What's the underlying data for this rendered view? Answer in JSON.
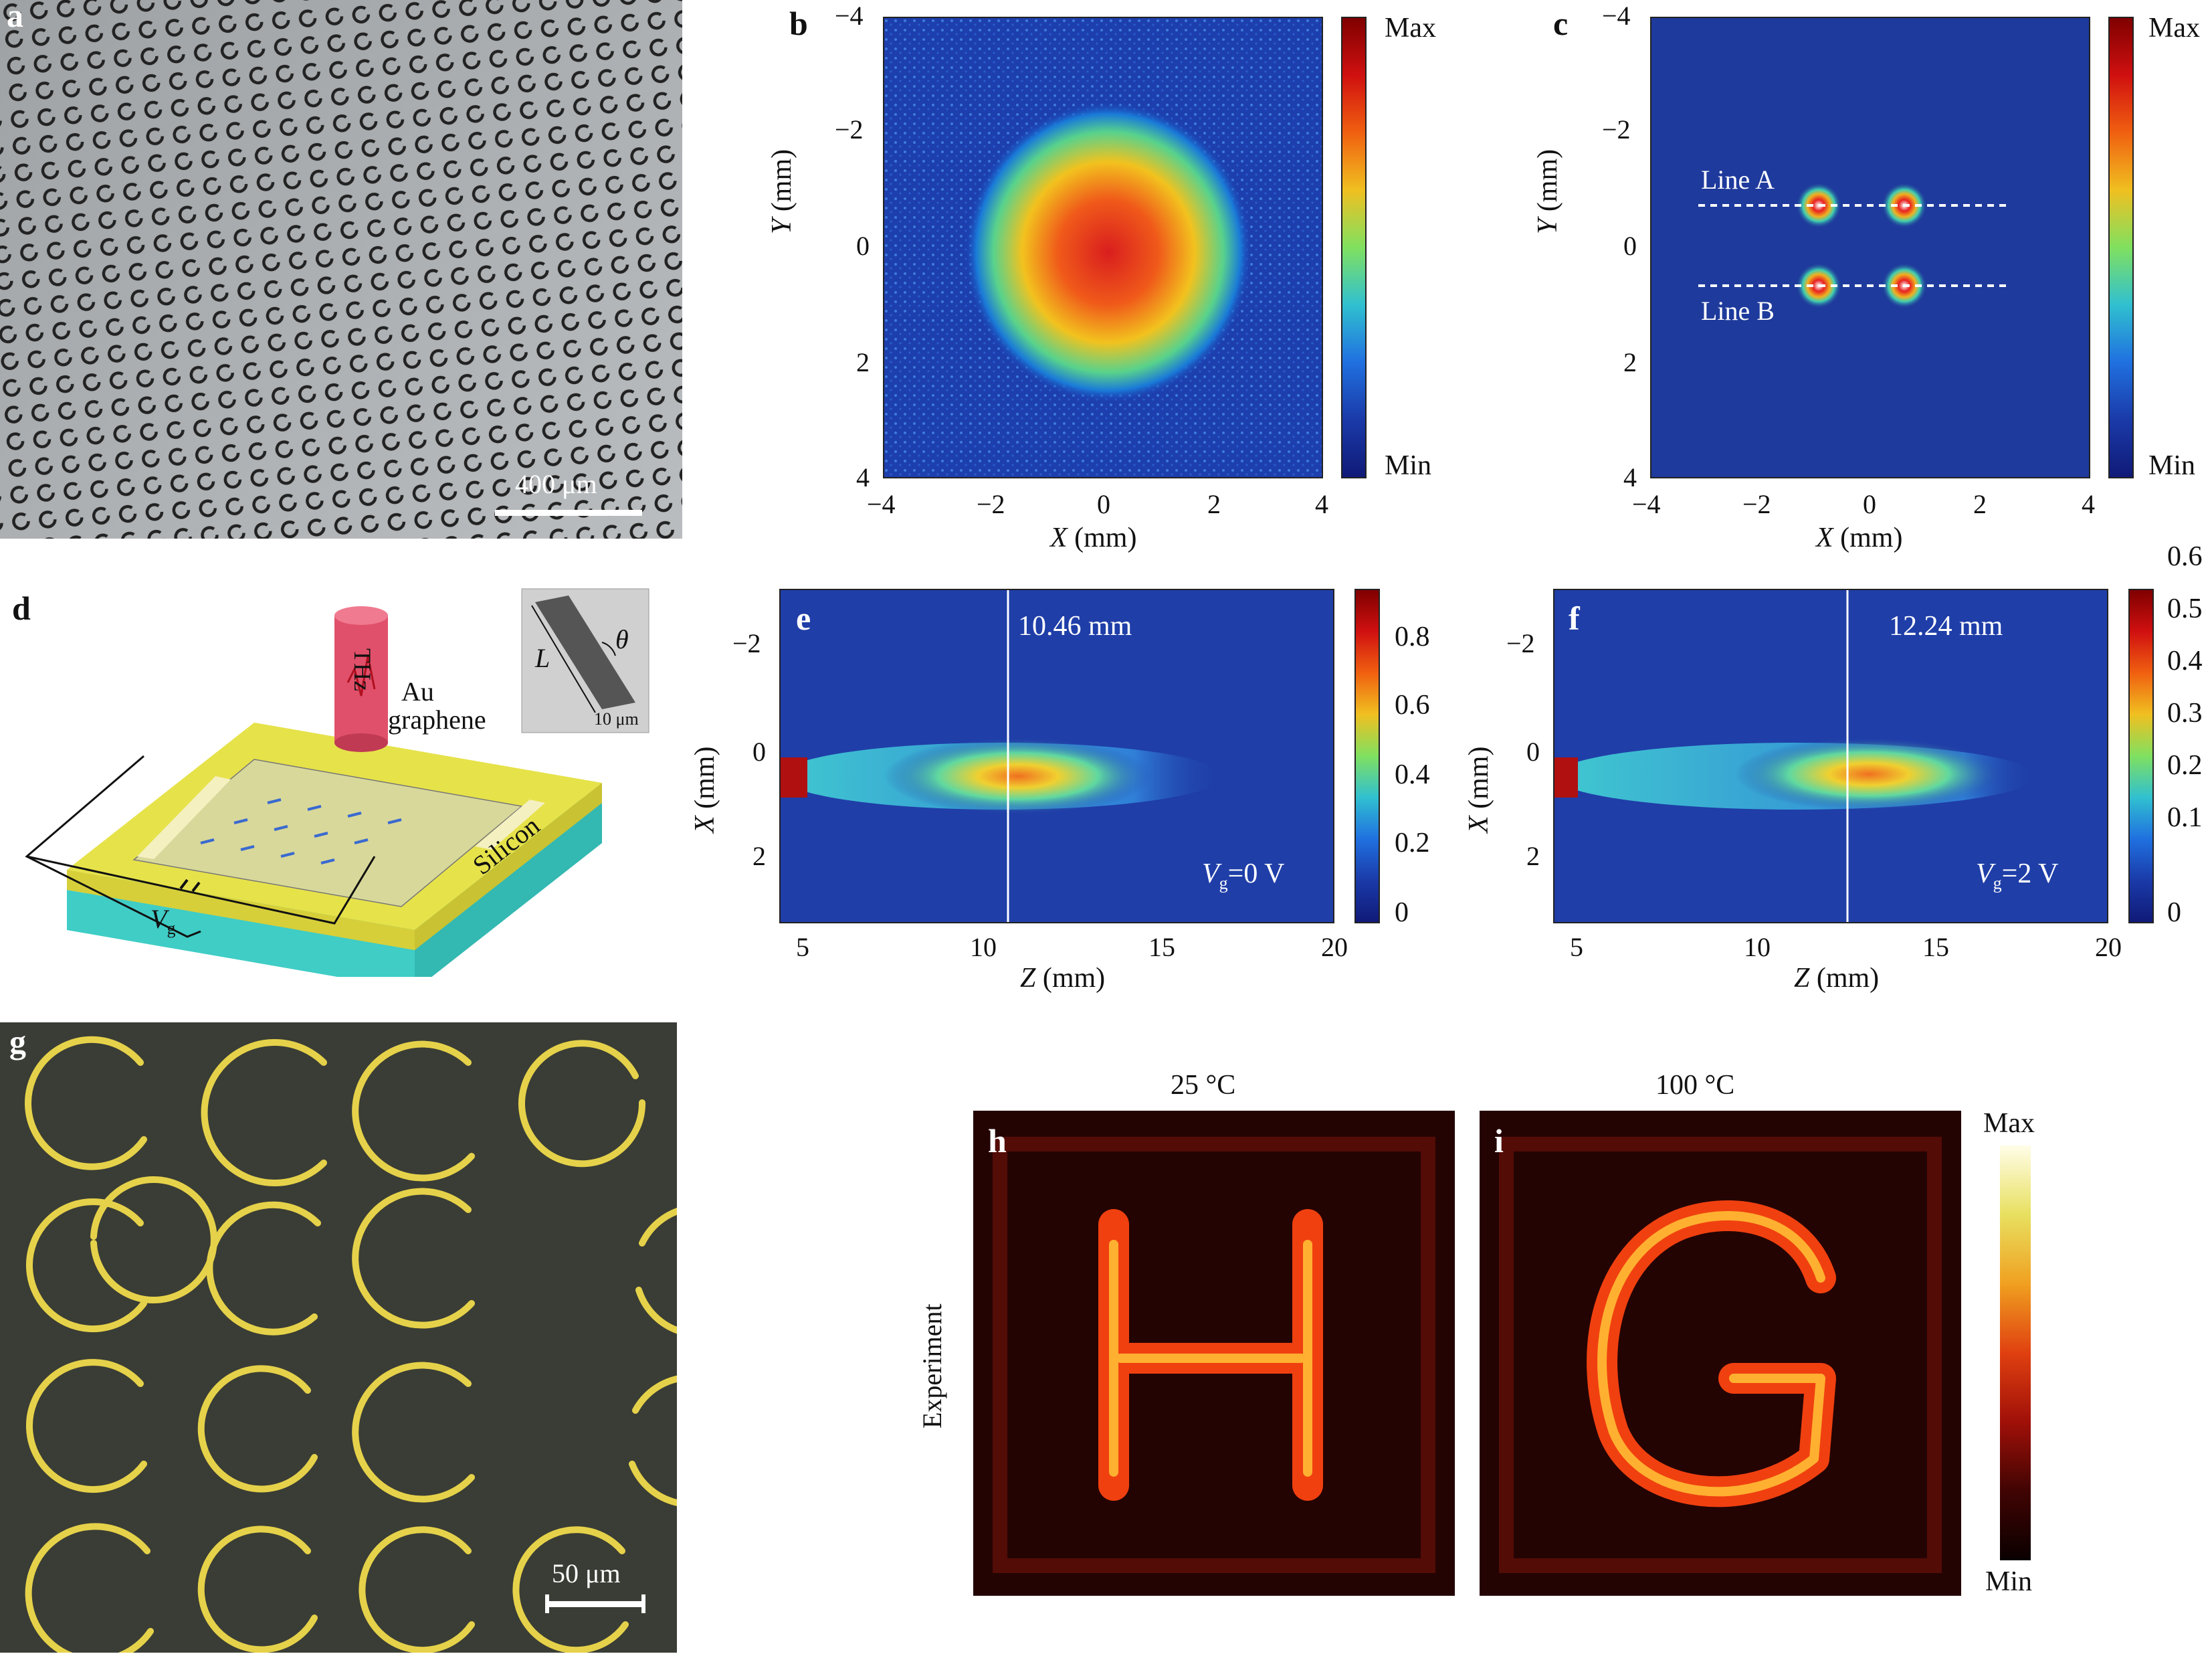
{
  "panels": {
    "a": {
      "label": "a",
      "scalebar": "400 μm"
    },
    "b": {
      "label": "b",
      "xlabel_var": "X",
      "xlabel_unit": " (mm)",
      "ylabel_var": "Y",
      "ylabel_unit": " (mm)",
      "xticks": [
        "−4",
        "−2",
        "0",
        "2",
        "4"
      ],
      "yticks": [
        "−4",
        "−2",
        "0",
        "2",
        "4"
      ],
      "colorbar": {
        "max": "Max",
        "min": "Min"
      }
    },
    "c": {
      "label": "c",
      "xlabel_var": "X",
      "xlabel_unit": " (mm)",
      "ylabel_var": "Y",
      "ylabel_unit": " (mm)",
      "xticks": [
        "−4",
        "−2",
        "0",
        "2",
        "4"
      ],
      "yticks": [
        "−4",
        "−2",
        "0",
        "2",
        "4"
      ],
      "line_a": "Line A",
      "line_b": "Line B",
      "colorbar": {
        "max": "Max",
        "min": "Min"
      }
    },
    "d": {
      "label": "d",
      "au": "Au",
      "graphene": "graphene",
      "silicon": "Silicon",
      "thz": "THz",
      "vg_main": "V",
      "vg_sub": "g",
      "inset_L": "L",
      "inset_theta": "θ",
      "inset_scale": "10 μm"
    },
    "e": {
      "label": "e",
      "marker": "10.46 mm",
      "vg_main": "V",
      "vg_sub": "g",
      "vg_value": "=0 V",
      "xticks": [
        "5",
        "10",
        "15",
        "20"
      ],
      "yticks": [
        "−2",
        "0",
        "2"
      ],
      "xlabel_var": "Z",
      "xlabel_unit": " (mm)",
      "ylabel_var": "X",
      "ylabel_unit": " (mm)",
      "cbticks": [
        "0.8",
        "0.6",
        "0.4",
        "0.2",
        "0"
      ]
    },
    "f": {
      "label": "f",
      "marker": "12.24 mm",
      "vg_main": "V",
      "vg_sub": "g",
      "vg_value": "=2 V",
      "xticks": [
        "5",
        "10",
        "15",
        "20"
      ],
      "yticks": [
        "−2",
        "0",
        "2"
      ],
      "xlabel_var": "Z",
      "xlabel_unit": " (mm)",
      "ylabel_var": "X",
      "ylabel_unit": " (mm)",
      "cbticks": [
        "0.6",
        "0.5",
        "0.4",
        "0.3",
        "0.2",
        "0.1",
        "0"
      ]
    },
    "g": {
      "label": "g",
      "scalebar": "50 μm"
    },
    "h": {
      "label": "h",
      "title": "25 °C",
      "letter": "H"
    },
    "i": {
      "label": "i",
      "title": "100 °C",
      "letter": "G"
    },
    "hi": {
      "row_label": "Experiment",
      "colorbar": {
        "max": "Max",
        "min": "Min"
      }
    }
  },
  "colors": {
    "jet_low": "#0a2a9c",
    "jet_mid": "#18c8c8",
    "jet_high": "#c8102e",
    "gold": "#e6d24a",
    "silicon": "#3fcdc6"
  }
}
